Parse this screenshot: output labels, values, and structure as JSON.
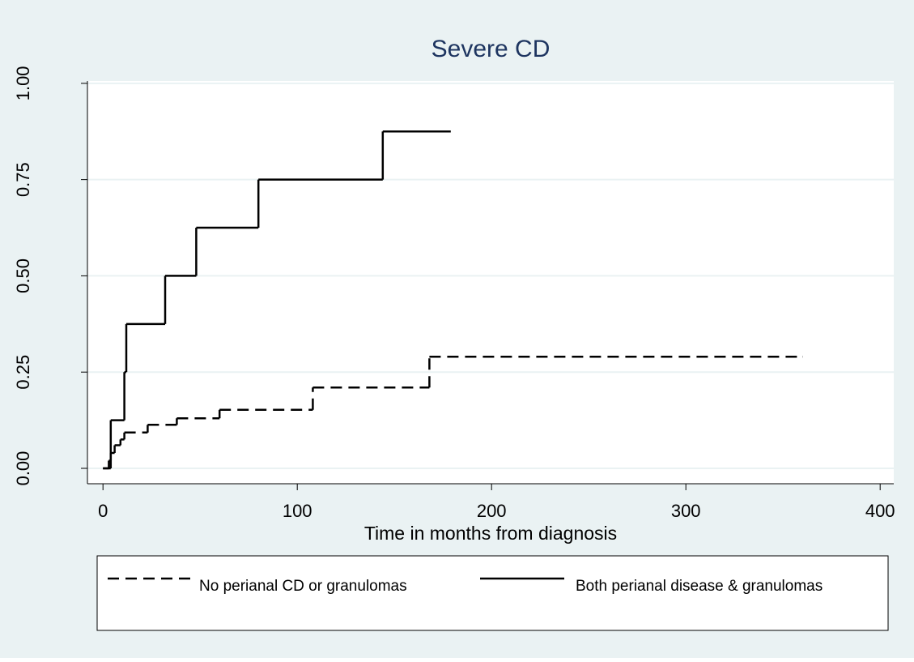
{
  "chart_data": {
    "type": "step",
    "title": "Severe CD",
    "x_label": "Time in months from diagnosis",
    "xlim": [
      -8,
      407
    ],
    "ylim": [
      -0.04,
      1.006
    ],
    "xticks": [
      0,
      100,
      200,
      300,
      400
    ],
    "yticks": [
      {
        "value": 0,
        "label": "0.00"
      },
      {
        "value": 0.25,
        "label": "0.25"
      },
      {
        "value": 0.5,
        "label": "0.50"
      },
      {
        "value": 0.75,
        "label": "0.75"
      },
      {
        "value": 1,
        "label": "1.00"
      }
    ],
    "grid": true,
    "legend": "bottom",
    "series": [
      {
        "name": "No perianal CD or granulomas",
        "color": "#000000",
        "linestyle": "dashed",
        "x": [
          0,
          3,
          4,
          6,
          9,
          11,
          23,
          38,
          60,
          108,
          168,
          360
        ],
        "values": [
          0,
          0.02,
          0.04,
          0.06,
          0.075,
          0.093,
          0.113,
          0.13,
          0.152,
          0.21,
          0.29,
          0.29
        ]
      },
      {
        "name": "Both perianal disease & granulomas",
        "color": "#000000",
        "linestyle": "solid",
        "x": [
          0,
          4,
          11,
          12,
          32,
          48,
          80,
          144,
          179
        ],
        "values": [
          0,
          0.125,
          0.25,
          0.375,
          0.5,
          0.625,
          0.75,
          0.875,
          0.875
        ]
      }
    ]
  }
}
